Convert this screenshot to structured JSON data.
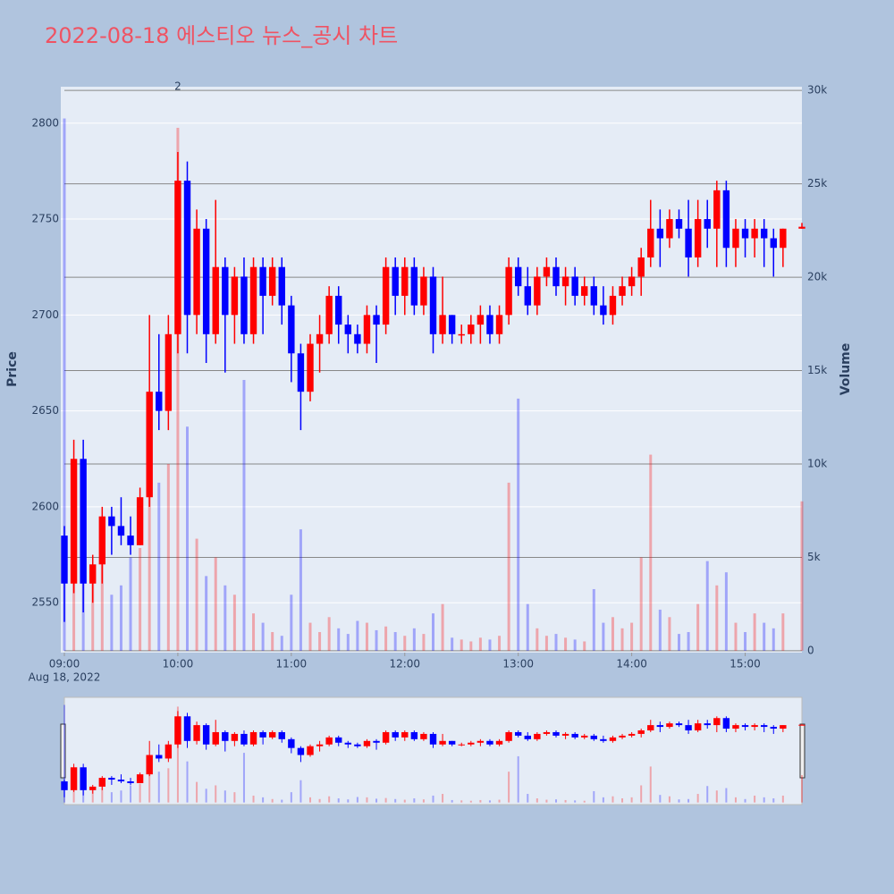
{
  "chart_data": {
    "type": "candlestick",
    "title": "2022-08-18 에스티오 뉴스_공시 차트",
    "x": [
      "09:00",
      "09:05",
      "09:10",
      "09:15",
      "09:20",
      "09:25",
      "09:30",
      "09:35",
      "09:40",
      "09:45",
      "09:50",
      "09:55",
      "10:00",
      "10:05",
      "10:10",
      "10:15",
      "10:20",
      "10:25",
      "10:30",
      "10:35",
      "10:40",
      "10:45",
      "10:50",
      "10:55",
      "11:00",
      "11:05",
      "11:10",
      "11:15",
      "11:20",
      "11:25",
      "11:30",
      "11:35",
      "11:40",
      "11:45",
      "11:50",
      "11:55",
      "12:00",
      "12:05",
      "12:10",
      "12:15",
      "12:20",
      "12:25",
      "12:30",
      "12:35",
      "12:40",
      "12:45",
      "12:50",
      "12:55",
      "13:00",
      "13:05",
      "13:10",
      "13:15",
      "13:20",
      "13:25",
      "13:30",
      "13:35",
      "13:40",
      "13:45",
      "13:50",
      "13:55",
      "14:00",
      "14:05",
      "14:10",
      "14:15",
      "14:20",
      "14:25",
      "14:30",
      "14:35",
      "14:40",
      "14:45",
      "14:50",
      "14:55",
      "15:00",
      "15:05",
      "15:10",
      "15:15",
      "15:20",
      "15:30"
    ],
    "open": [
      2585,
      2560,
      2625,
      2560,
      2570,
      2595,
      2590,
      2585,
      2580,
      2605,
      2660,
      2650,
      2690,
      2770,
      2700,
      2745,
      2690,
      2725,
      2700,
      2720,
      2690,
      2725,
      2710,
      2725,
      2705,
      2680,
      2660,
      2685,
      2690,
      2710,
      2695,
      2690,
      2685,
      2700,
      2695,
      2725,
      2710,
      2725,
      2705,
      2720,
      2690,
      2700,
      2690,
      2690,
      2695,
      2700,
      2690,
      2700,
      2725,
      2715,
      2705,
      2720,
      2725,
      2715,
      2720,
      2710,
      2715,
      2705,
      2700,
      2710,
      2715,
      2720,
      2730,
      2745,
      2740,
      2750,
      2745,
      2730,
      2750,
      2745,
      2765,
      2735,
      2745,
      2740,
      2745,
      2740,
      2735,
      2745
    ],
    "high": [
      2590,
      2635,
      2635,
      2575,
      2600,
      2600,
      2605,
      2595,
      2610,
      2700,
      2690,
      2700,
      2785,
      2780,
      2755,
      2750,
      2760,
      2730,
      2725,
      2730,
      2730,
      2730,
      2730,
      2730,
      2710,
      2685,
      2690,
      2700,
      2715,
      2715,
      2700,
      2695,
      2705,
      2705,
      2730,
      2730,
      2730,
      2730,
      2725,
      2725,
      2720,
      2700,
      2695,
      2700,
      2705,
      2705,
      2705,
      2730,
      2730,
      2725,
      2725,
      2730,
      2730,
      2725,
      2725,
      2720,
      2720,
      2715,
      2715,
      2720,
      2725,
      2735,
      2760,
      2755,
      2755,
      2755,
      2760,
      2760,
      2760,
      2770,
      2770,
      2750,
      2750,
      2750,
      2750,
      2745,
      2745,
      2748
    ],
    "low": [
      2540,
      2555,
      2545,
      2550,
      2560,
      2575,
      2580,
      2575,
      2580,
      2600,
      2640,
      2640,
      2680,
      2680,
      2690,
      2675,
      2685,
      2670,
      2685,
      2685,
      2685,
      2690,
      2705,
      2695,
      2665,
      2640,
      2655,
      2670,
      2685,
      2685,
      2680,
      2680,
      2680,
      2675,
      2690,
      2700,
      2700,
      2700,
      2700,
      2680,
      2685,
      2685,
      2685,
      2685,
      2685,
      2685,
      2685,
      2695,
      2710,
      2700,
      2700,
      2715,
      2710,
      2705,
      2705,
      2705,
      2700,
      2695,
      2695,
      2705,
      2710,
      2710,
      2725,
      2725,
      2735,
      2740,
      2720,
      2725,
      2735,
      2725,
      2725,
      2725,
      2730,
      2730,
      2725,
      2720,
      2725,
      2745
    ],
    "close": [
      2560,
      2625,
      2560,
      2570,
      2595,
      2590,
      2585,
      2580,
      2605,
      2660,
      2650,
      2690,
      2770,
      2700,
      2745,
      2690,
      2725,
      2700,
      2720,
      2690,
      2725,
      2710,
      2725,
      2705,
      2680,
      2660,
      2685,
      2690,
      2710,
      2695,
      2690,
      2685,
      2700,
      2695,
      2725,
      2710,
      2725,
      2705,
      2720,
      2690,
      2700,
      2690,
      2690,
      2695,
      2700,
      2690,
      2700,
      2725,
      2715,
      2705,
      2720,
      2725,
      2715,
      2720,
      2710,
      2715,
      2705,
      2700,
      2710,
      2715,
      2720,
      2730,
      2745,
      2740,
      2750,
      2745,
      2730,
      2750,
      2745,
      2765,
      2735,
      2745,
      2740,
      2745,
      2740,
      2735,
      2745,
      2746
    ],
    "volume": [
      28500,
      8000,
      5000,
      4000,
      6000,
      3000,
      3500,
      5000,
      5500,
      12000,
      9000,
      10000,
      28000,
      12000,
      6000,
      4000,
      5000,
      3500,
      3000,
      14500,
      2000,
      1500,
      1000,
      800,
      3000,
      6500,
      1500,
      1000,
      1800,
      1200,
      900,
      1600,
      1500,
      1100,
      1300,
      1000,
      800,
      1200,
      900,
      2000,
      2500,
      700,
      600,
      500,
      700,
      600,
      800,
      9000,
      13500,
      2500,
      1200,
      800,
      900,
      700,
      600,
      500,
      3300,
      1500,
      1800,
      1200,
      1500,
      5000,
      10500,
      2200,
      1800,
      900,
      1000,
      2500,
      4800,
      3500,
      4200,
      1500,
      1000,
      2000,
      1500,
      1200,
      2000,
      8000
    ],
    "xlim": [
      "09:00",
      "15:30"
    ],
    "xticks": [
      "09:00",
      "10:00",
      "11:00",
      "12:00",
      "13:00",
      "14:00",
      "15:00"
    ],
    "date_label": "Aug 18, 2022",
    "ylim": [
      2524,
      2819
    ],
    "yticks": [
      2550,
      2600,
      2650,
      2700,
      2750,
      2800
    ],
    "y2lim": [
      -100,
      30200
    ],
    "y2ticks": [
      0,
      {
        "value": 5000,
        "label": "5k"
      },
      {
        "value": 10000,
        "label": "10k"
      },
      {
        "value": 15000,
        "label": "15k"
      },
      {
        "value": 20000,
        "label": "20k"
      },
      {
        "value": 25000,
        "label": "25k"
      },
      {
        "value": 30000,
        "label": "30k"
      }
    ],
    "y_label": "Price",
    "y2_label": "Volume",
    "up_color": "#ff0000",
    "down_color": "#0000ff",
    "annotations": [
      {
        "x": "10:00",
        "text": "2"
      }
    ],
    "rangeslider": true
  }
}
